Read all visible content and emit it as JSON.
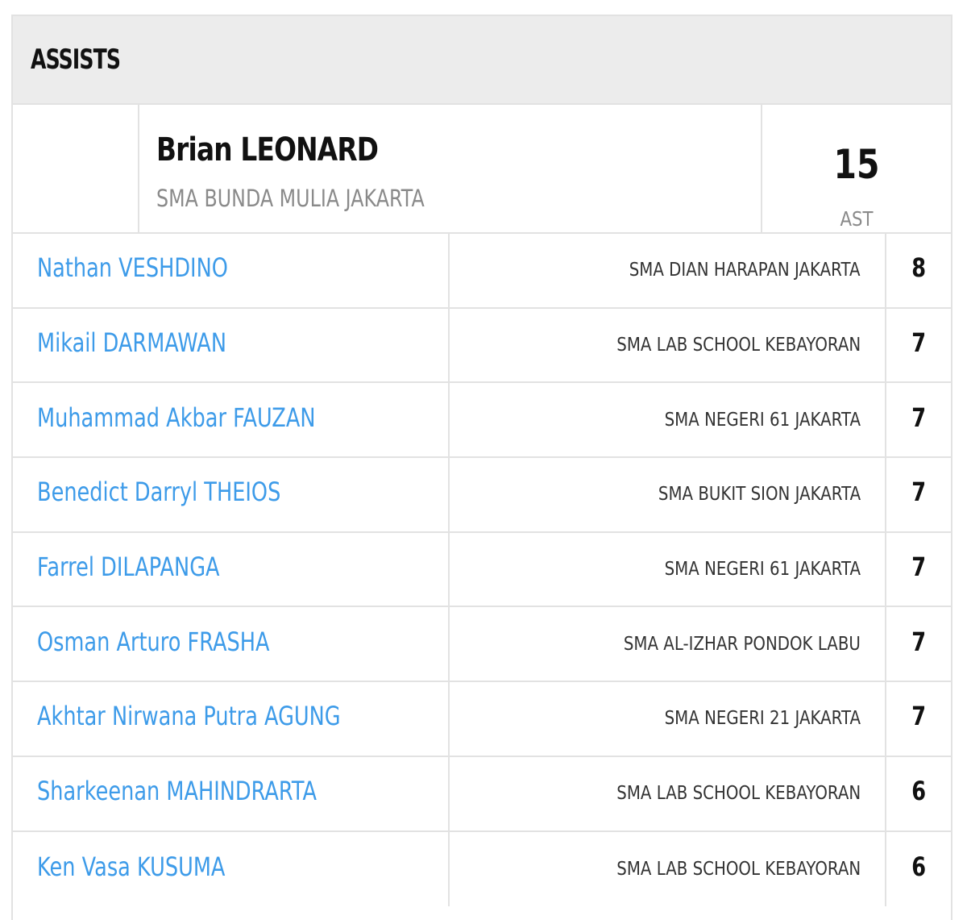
{
  "header": {
    "title": "ASSISTS"
  },
  "leader": {
    "name": "Brian LEONARD",
    "team": "SMA BUNDA MULIA JAKARTA",
    "value": "15",
    "unit": "AST"
  },
  "rows": [
    {
      "name": "Nathan VESHDINO",
      "team": "SMA DIAN HARAPAN JAKARTA",
      "value": "8"
    },
    {
      "name": "Mikail DARMAWAN",
      "team": "SMA LAB SCHOOL KEBAYORAN",
      "value": "7"
    },
    {
      "name": "Muhammad Akbar FAUZAN",
      "team": "SMA NEGERI 61 JAKARTA",
      "value": "7"
    },
    {
      "name": "Benedict Darryl THEIOS",
      "team": "SMA BUKIT SION JAKARTA",
      "value": "7"
    },
    {
      "name": "Farrel DILAPANGA",
      "team": "SMA NEGERI 61 JAKARTA",
      "value": "7"
    },
    {
      "name": "Osman Arturo FRASHA",
      "team": "SMA AL-IZHAR PONDOK LABU",
      "value": "7"
    },
    {
      "name": "Akhtar Nirwana Putra AGUNG",
      "team": "SMA NEGERI 21 JAKARTA",
      "value": "7"
    },
    {
      "name": "Sharkeenan MAHINDRARTA",
      "team": "SMA LAB SCHOOL KEBAYORAN",
      "value": "6"
    },
    {
      "name": "Ken Vasa KUSUMA",
      "team": "SMA LAB SCHOOL KEBAYORAN",
      "value": "6"
    }
  ],
  "colors": {
    "link": "#3d9be9",
    "header_bg": "#ececec",
    "border": "#e2e2e2",
    "muted_text": "#8a8a8a"
  }
}
